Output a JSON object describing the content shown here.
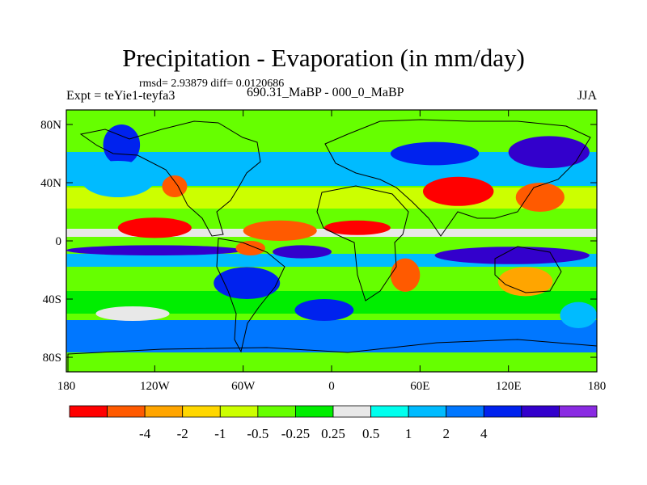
{
  "title": "Precipitation - Evaporation (in mm/day)",
  "stats": "rmsd= 2.93879 diff= 0.0120686",
  "experiment": "Expt = teYie1-teyfa3",
  "period": "690.31_MaBP - 000_0_MaBP",
  "season": "JJA",
  "map": {
    "lat_ticks": [
      {
        "value": 80,
        "label": "80N"
      },
      {
        "value": 40,
        "label": "40N"
      },
      {
        "value": 0,
        "label": "0"
      },
      {
        "value": -40,
        "label": "40S"
      },
      {
        "value": -80,
        "label": "80S"
      }
    ],
    "lon_ticks": [
      {
        "value": -180,
        "label": "180"
      },
      {
        "value": -120,
        "label": "120W"
      },
      {
        "value": -60,
        "label": "60W"
      },
      {
        "value": 0,
        "label": "0"
      },
      {
        "value": 60,
        "label": "60E"
      },
      {
        "value": 120,
        "label": "120E"
      },
      {
        "value": 180,
        "label": "180"
      }
    ],
    "lat_range": [
      -90,
      90
    ],
    "lon_range": [
      -180,
      180
    ]
  },
  "colorbar": {
    "colors": [
      "#ff0000",
      "#ff5a00",
      "#ffa500",
      "#ffd700",
      "#ccff00",
      "#66ff00",
      "#00ee00",
      "#e8e8e8",
      "#00ffee",
      "#00bbff",
      "#0077ff",
      "#0022ee",
      "#3300cc",
      "#8a2be2"
    ],
    "labels": [
      "-4",
      "-2",
      "-1",
      "-0.5",
      "-0.25",
      "0.25",
      "0.5",
      "1",
      "2",
      "4"
    ]
  },
  "fill_regions": [
    {
      "color": "#0022ee",
      "lon": [
        -155,
        -130
      ],
      "lat": [
        52,
        80
      ]
    },
    {
      "color": "#00bbff",
      "lon": [
        -170,
        -120
      ],
      "lat": [
        30,
        55
      ]
    },
    {
      "color": "#ff0000",
      "lon": [
        -145,
        -95
      ],
      "lat": [
        2,
        16
      ]
    },
    {
      "color": "#ff5a00",
      "lon": [
        -60,
        -10
      ],
      "lat": [
        0,
        14
      ]
    },
    {
      "color": "#ff0000",
      "lon": [
        -5,
        40
      ],
      "lat": [
        4,
        14
      ]
    },
    {
      "color": "#ff0000",
      "lon": [
        62,
        110
      ],
      "lat": [
        24,
        44
      ]
    },
    {
      "color": "#ff5a00",
      "lon": [
        125,
        158
      ],
      "lat": [
        20,
        40
      ]
    },
    {
      "color": "#3300cc",
      "lon": [
        -180,
        -60
      ],
      "lat": [
        -10,
        -3
      ]
    },
    {
      "color": "#3300cc",
      "lon": [
        -40,
        0
      ],
      "lat": [
        -12,
        -3
      ]
    },
    {
      "color": "#3300cc",
      "lon": [
        70,
        175
      ],
      "lat": [
        -16,
        -4
      ]
    },
    {
      "color": "#0022ee",
      "lon": [
        -80,
        -35
      ],
      "lat": [
        -40,
        -18
      ]
    },
    {
      "color": "#ff5a00",
      "lon": [
        -65,
        -45
      ],
      "lat": [
        -10,
        0
      ]
    },
    {
      "color": "#ff5a00",
      "lon": [
        40,
        60
      ],
      "lat": [
        -35,
        -12
      ]
    },
    {
      "color": "#ffa500",
      "lon": [
        113,
        150
      ],
      "lat": [
        -38,
        -18
      ]
    },
    {
      "color": "#0022ee",
      "lon": [
        -25,
        15
      ],
      "lat": [
        -55,
        -40
      ]
    },
    {
      "color": "#e8e8e8",
      "lon": [
        -160,
        -110
      ],
      "lat": [
        -55,
        -45
      ]
    },
    {
      "color": "#0022ee",
      "lon": [
        40,
        100
      ],
      "lat": [
        52,
        68
      ]
    },
    {
      "color": "#ff5a00",
      "lon": [
        -115,
        -98
      ],
      "lat": [
        30,
        45
      ]
    },
    {
      "color": "#00bbff",
      "lon": [
        155,
        180
      ],
      "lat": [
        -60,
        -42
      ]
    },
    {
      "color": "#3300cc",
      "lon": [
        120,
        175
      ],
      "lat": [
        50,
        72
      ]
    }
  ]
}
